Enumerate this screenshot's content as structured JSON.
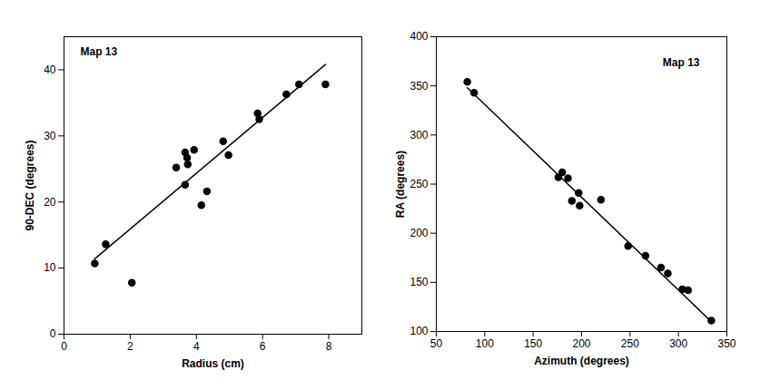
{
  "chart_data": [
    {
      "type": "scatter",
      "annotations": [
        "Map 13"
      ],
      "x_label": "Radius (cm)",
      "y_label": "90-DEC (degrees)",
      "xlim": [
        0,
        9
      ],
      "xticks": [
        0,
        2,
        4,
        6,
        8
      ],
      "ylim": [
        0,
        45
      ],
      "yticks": [
        0,
        10,
        20,
        30,
        40
      ],
      "grid": false,
      "series": [
        {
          "type": "scatter",
          "marker": "circle",
          "color": "#000000",
          "x": [
            0.93,
            1.26,
            2.05,
            3.39,
            3.66,
            3.72,
            3.66,
            3.74,
            3.93,
            4.15,
            4.32,
            4.81,
            4.97,
            5.85,
            5.9,
            6.72,
            7.1,
            7.9
          ],
          "values": [
            10.7,
            13.6,
            7.8,
            25.2,
            27.5,
            26.7,
            22.6,
            25.7,
            27.9,
            19.5,
            21.6,
            29.2,
            27.1,
            33.4,
            32.5,
            36.3,
            37.8,
            37.8
          ]
        },
        {
          "type": "line",
          "line_style": "solid",
          "color": "#000000",
          "x": [
            0.93,
            7.9
          ],
          "values": [
            11.4,
            40.8
          ]
        }
      ]
    },
    {
      "type": "scatter",
      "annotations": [
        "Map 13"
      ],
      "x_label": "Azimuth (degrees)",
      "y_label": "RA (degrees)",
      "xlim": [
        50,
        350
      ],
      "xticks": [
        50,
        100,
        150,
        200,
        250,
        300,
        350
      ],
      "ylim": [
        100,
        400
      ],
      "yticks": [
        100,
        150,
        200,
        250,
        300,
        350,
        400
      ],
      "grid": false,
      "series": [
        {
          "type": "scatter",
          "marker": "circle",
          "color": "#000000",
          "x": [
            82,
            89,
            176,
            180,
            186,
            190,
            197,
            198,
            220,
            248,
            266,
            282,
            289,
            304,
            310,
            334
          ],
          "values": [
            354,
            343,
            257,
            262,
            256,
            233,
            241,
            228,
            234,
            187,
            177,
            165,
            159,
            143,
            142,
            111
          ]
        },
        {
          "type": "line",
          "line_style": "solid",
          "color": "#000000",
          "x": [
            82,
            334
          ],
          "values": [
            348,
            110
          ]
        }
      ]
    }
  ]
}
